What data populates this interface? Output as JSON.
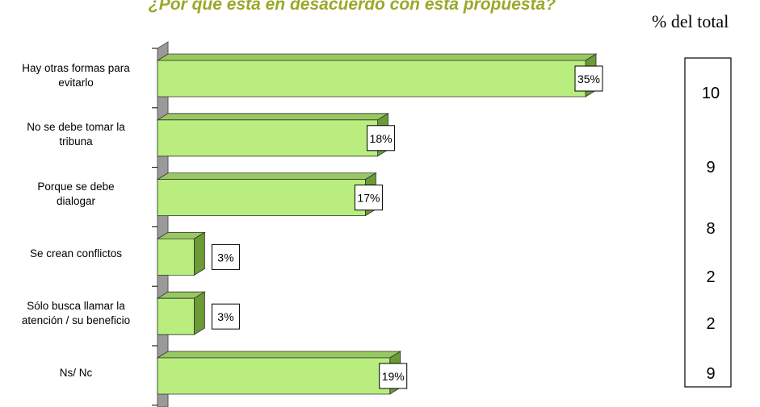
{
  "chart_data": {
    "type": "bar3d_horizontal",
    "title": "¿Por qué está en desacuerdo con esta propuesta?",
    "categories": [
      "Hay otras formas para\nevitarlo",
      "No se debe tomar la\ntribuna",
      "Porque se debe\ndialogar",
      "Se crean conflictos",
      "Sólo busca llamar la\natención / su beneficio",
      "Ns/ Nc"
    ],
    "values": [
      35,
      18,
      17,
      3,
      3,
      19
    ],
    "value_labels": [
      "35%",
      "18%",
      "17%",
      "3%",
      "3%",
      "19%"
    ],
    "color": "#b9ee7f",
    "side_table": {
      "label": "% del total",
      "values": [
        10,
        9,
        8,
        2,
        2,
        9
      ]
    }
  }
}
